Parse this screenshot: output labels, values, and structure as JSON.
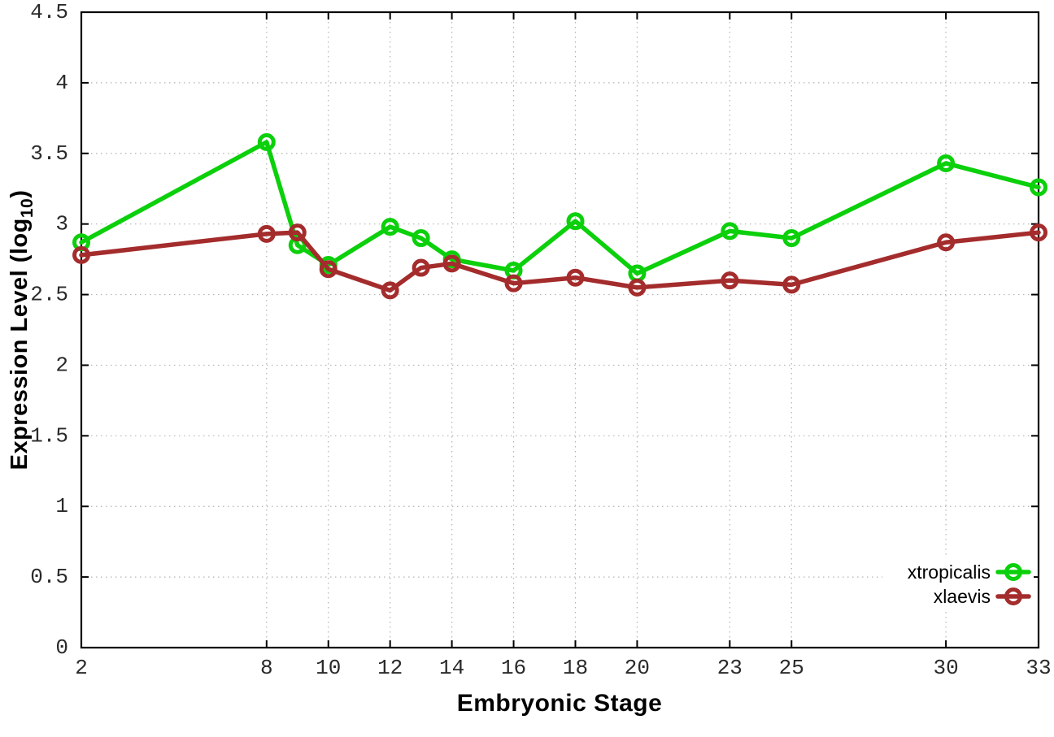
{
  "chart_data": {
    "type": "line",
    "xlabel": "Embryonic Stage",
    "ylabel_main": "Expression Level (log",
    "ylabel_sub": "10",
    "ylabel_close": ")",
    "x": [
      2,
      8,
      9,
      10,
      12,
      13,
      14,
      16,
      18,
      20,
      23,
      25,
      30,
      33
    ],
    "xticks": [
      2,
      8,
      10,
      12,
      14,
      16,
      18,
      20,
      23,
      25,
      30,
      33
    ],
    "yticks": [
      0,
      0.5,
      1,
      1.5,
      2,
      2.5,
      3,
      3.5,
      4,
      4.5
    ],
    "xlim": [
      2,
      33
    ],
    "ylim": [
      0,
      4.5
    ],
    "grid": true,
    "legend_position": "inside-bottom-right",
    "series": [
      {
        "name": "xtropicalis",
        "color": "#0bd00b",
        "values": [
          2.87,
          3.58,
          2.85,
          2.71,
          2.98,
          2.9,
          2.75,
          2.67,
          3.02,
          2.65,
          2.95,
          2.9,
          3.43,
          3.26
        ]
      },
      {
        "name": "xlaevis",
        "color": "#a42c2c",
        "values": [
          2.78,
          2.93,
          2.94,
          2.68,
          2.53,
          2.69,
          2.72,
          2.58,
          2.62,
          2.55,
          2.6,
          2.57,
          2.87,
          2.94
        ]
      }
    ]
  }
}
